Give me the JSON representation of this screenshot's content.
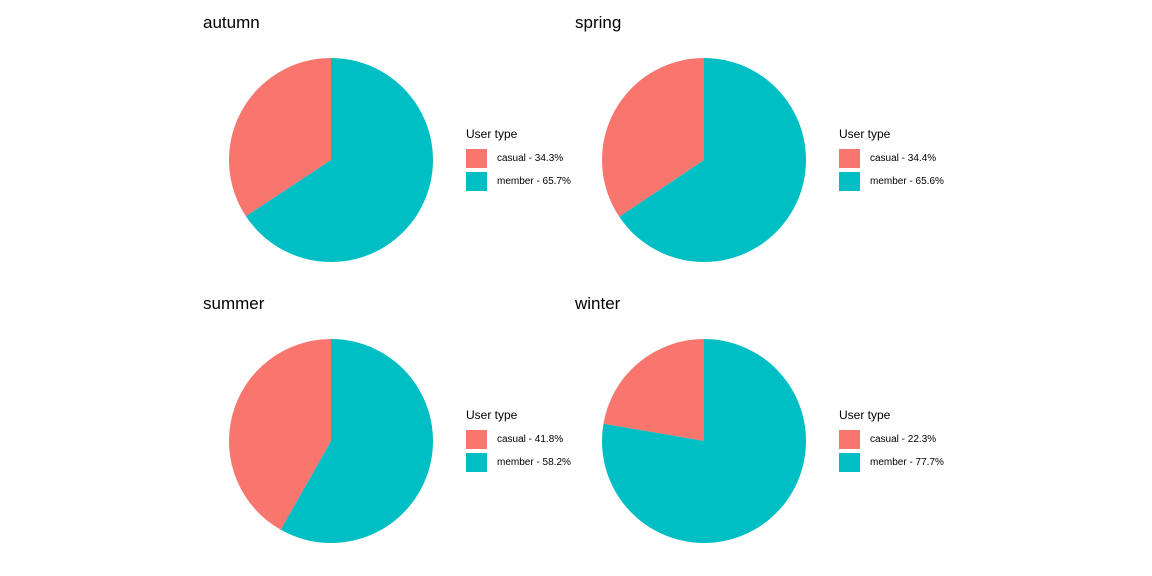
{
  "chart_data": [
    {
      "type": "pie",
      "title": "autumn",
      "legend_title": "User type",
      "legend_position": "right",
      "categories": [
        "casual",
        "member"
      ],
      "values": [
        34.3,
        65.7
      ],
      "labels": [
        "casual - 34.3%",
        "member - 65.7%"
      ],
      "colors": [
        "#F8766D",
        "#00BFC4"
      ]
    },
    {
      "type": "pie",
      "title": "spring",
      "legend_title": "User type",
      "legend_position": "right",
      "categories": [
        "casual",
        "member"
      ],
      "values": [
        34.4,
        65.6
      ],
      "labels": [
        "casual - 34.4%",
        "member - 65.6%"
      ],
      "colors": [
        "#F8766D",
        "#00BFC4"
      ]
    },
    {
      "type": "pie",
      "title": "summer",
      "legend_title": "User type",
      "legend_position": "right",
      "categories": [
        "casual",
        "member"
      ],
      "values": [
        41.8,
        58.2
      ],
      "labels": [
        "casual - 41.8%",
        "member - 58.2%"
      ],
      "colors": [
        "#F8766D",
        "#00BFC4"
      ]
    },
    {
      "type": "pie",
      "title": "winter",
      "legend_title": "User type",
      "legend_position": "right",
      "categories": [
        "casual",
        "member"
      ],
      "values": [
        22.3,
        77.7
      ],
      "labels": [
        "casual - 22.3%",
        "member - 77.7%"
      ],
      "colors": [
        "#F8766D",
        "#00BFC4"
      ]
    }
  ]
}
